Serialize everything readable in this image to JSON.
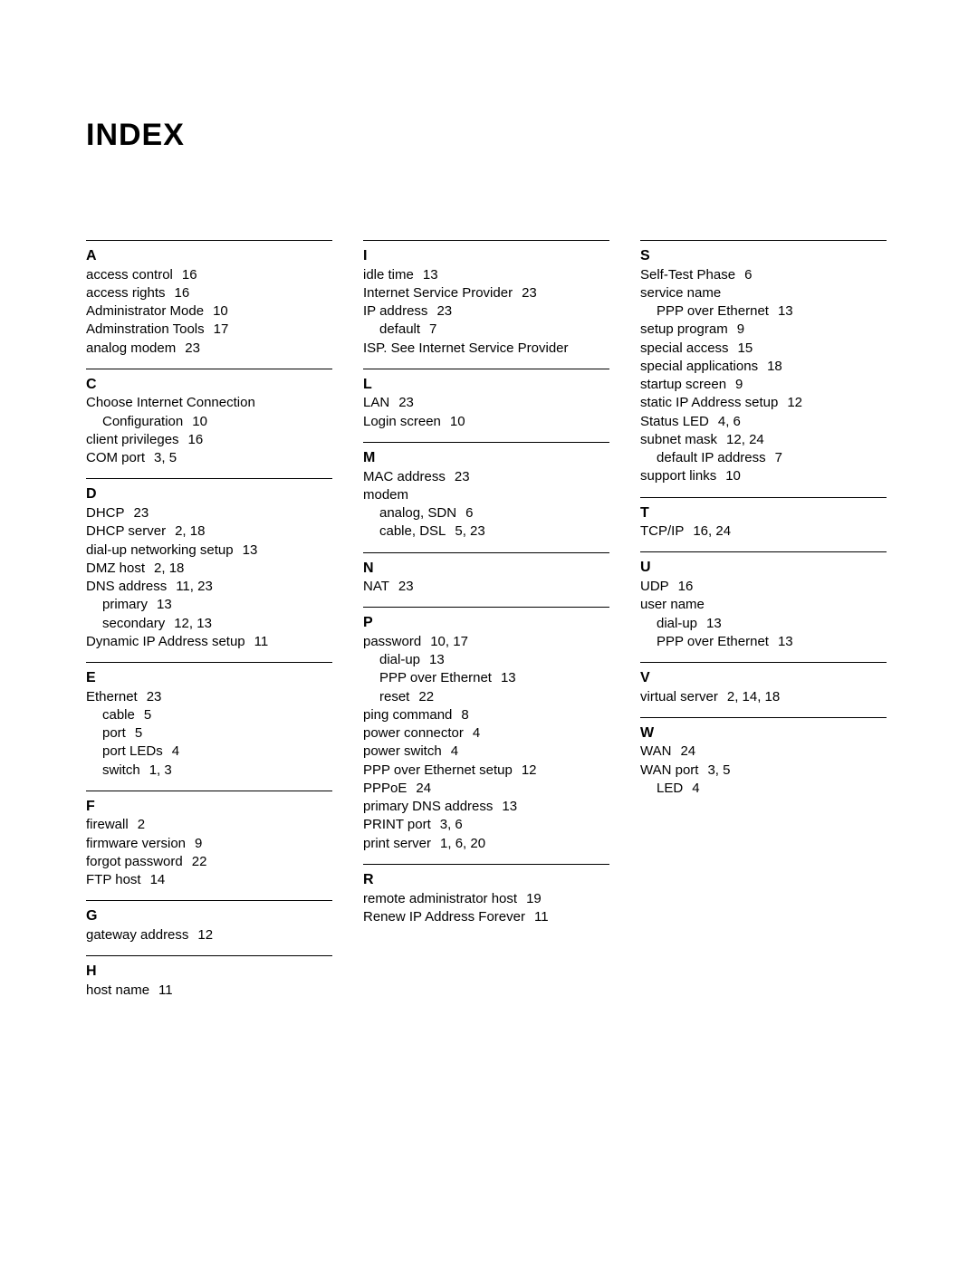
{
  "title": "INDEX",
  "columns": [
    [
      {
        "letter": "A",
        "entries": [
          {
            "term": "access control",
            "pages": "16"
          },
          {
            "term": "access rights",
            "pages": "16"
          },
          {
            "term": "Administrator Mode",
            "pages": "10"
          },
          {
            "term": "Adminstration Tools",
            "pages": "17"
          },
          {
            "term": "analog modem",
            "pages": "23"
          }
        ]
      },
      {
        "letter": "C",
        "entries": [
          {
            "term": "Choose Internet Connection",
            "pages": ""
          },
          {
            "term": "Configuration",
            "pages": "10",
            "indent": 1
          },
          {
            "term": "client privileges",
            "pages": "16"
          },
          {
            "term": "COM port",
            "pages": "3, 5"
          }
        ]
      },
      {
        "letter": "D",
        "entries": [
          {
            "term": "DHCP",
            "pages": "23"
          },
          {
            "term": "DHCP server",
            "pages": "2, 18"
          },
          {
            "term": "dial-up networking setup",
            "pages": "13"
          },
          {
            "term": "DMZ host",
            "pages": "2, 18"
          },
          {
            "term": "DNS address",
            "pages": "11, 23"
          },
          {
            "term": "primary",
            "pages": "13",
            "indent": 1
          },
          {
            "term": "secondary",
            "pages": "12, 13",
            "indent": 1
          },
          {
            "term": "Dynamic IP Address setup",
            "pages": "11"
          }
        ]
      },
      {
        "letter": "E",
        "entries": [
          {
            "term": "Ethernet",
            "pages": "23"
          },
          {
            "term": "cable",
            "pages": "5",
            "indent": 1
          },
          {
            "term": "port",
            "pages": "5",
            "indent": 1
          },
          {
            "term": "port LEDs",
            "pages": "4",
            "indent": 1
          },
          {
            "term": "switch",
            "pages": "1, 3",
            "indent": 1
          }
        ]
      },
      {
        "letter": "F",
        "entries": [
          {
            "term": "firewall",
            "pages": "2"
          },
          {
            "term": "firmware version",
            "pages": "9"
          },
          {
            "term": "forgot password",
            "pages": "22"
          },
          {
            "term": "FTP host",
            "pages": "14"
          }
        ]
      },
      {
        "letter": "G",
        "entries": [
          {
            "term": "gateway address",
            "pages": "12"
          }
        ]
      },
      {
        "letter": "H",
        "entries": [
          {
            "term": "host name",
            "pages": "11"
          }
        ]
      }
    ],
    [
      {
        "letter": "I",
        "entries": [
          {
            "term": "idle time",
            "pages": "13"
          },
          {
            "term": "Internet Service Provider",
            "pages": "23"
          },
          {
            "term": "IP address",
            "pages": "23"
          },
          {
            "term": "default",
            "pages": "7",
            "indent": 1
          },
          {
            "term": "ISP. See Internet Service Provider",
            "pages": ""
          }
        ]
      },
      {
        "letter": "L",
        "entries": [
          {
            "term": "LAN",
            "pages": "23"
          },
          {
            "term": "Login screen",
            "pages": "10"
          }
        ]
      },
      {
        "letter": "M",
        "entries": [
          {
            "term": "MAC address",
            "pages": "23"
          },
          {
            "term": "modem",
            "pages": ""
          },
          {
            "term": "analog, SDN",
            "pages": "6",
            "indent": 1
          },
          {
            "term": "cable, DSL",
            "pages": "5, 23",
            "indent": 1
          }
        ]
      },
      {
        "letter": "N",
        "entries": [
          {
            "term": "NAT",
            "pages": "23"
          }
        ]
      },
      {
        "letter": "P",
        "entries": [
          {
            "term": "password",
            "pages": "10, 17"
          },
          {
            "term": "dial-up",
            "pages": "13",
            "indent": 1
          },
          {
            "term": "PPP over Ethernet",
            "pages": "13",
            "indent": 1
          },
          {
            "term": "reset",
            "pages": "22",
            "indent": 1
          },
          {
            "term": "ping command",
            "pages": "8"
          },
          {
            "term": "power connector",
            "pages": "4"
          },
          {
            "term": "power switch",
            "pages": "4"
          },
          {
            "term": "PPP over Ethernet setup",
            "pages": "12"
          },
          {
            "term": "PPPoE",
            "pages": "24"
          },
          {
            "term": "primary DNS address",
            "pages": "13"
          },
          {
            "term": "PRINT port",
            "pages": "3, 6"
          },
          {
            "term": "print server",
            "pages": "1, 6, 20"
          }
        ]
      },
      {
        "letter": "R",
        "entries": [
          {
            "term": "remote administrator host",
            "pages": "19"
          },
          {
            "term": "Renew IP Address Forever",
            "pages": "11"
          }
        ]
      }
    ],
    [
      {
        "letter": "S",
        "entries": [
          {
            "term": "Self-Test Phase",
            "pages": "6"
          },
          {
            "term": "service name",
            "pages": ""
          },
          {
            "term": "PPP over Ethernet",
            "pages": "13",
            "indent": 1
          },
          {
            "term": "setup program",
            "pages": "9"
          },
          {
            "term": "special access",
            "pages": "15"
          },
          {
            "term": "special applications",
            "pages": "18"
          },
          {
            "term": "startup screen",
            "pages": "9"
          },
          {
            "term": "static IP Address setup",
            "pages": "12"
          },
          {
            "term": "Status LED",
            "pages": "4, 6"
          },
          {
            "term": "subnet mask",
            "pages": "12, 24"
          },
          {
            "term": "default IP address",
            "pages": "7",
            "indent": 1
          },
          {
            "term": "support links",
            "pages": "10"
          }
        ]
      },
      {
        "letter": "T",
        "entries": [
          {
            "term": "TCP/IP",
            "pages": "16, 24"
          }
        ]
      },
      {
        "letter": "U",
        "entries": [
          {
            "term": "UDP",
            "pages": "16"
          },
          {
            "term": "user name",
            "pages": ""
          },
          {
            "term": "dial-up",
            "pages": "13",
            "indent": 1
          },
          {
            "term": "PPP over Ethernet",
            "pages": "13",
            "indent": 1
          }
        ]
      },
      {
        "letter": "V",
        "entries": [
          {
            "term": "virtual server",
            "pages": "2, 14, 18"
          }
        ]
      },
      {
        "letter": "W",
        "entries": [
          {
            "term": "WAN",
            "pages": "24"
          },
          {
            "term": "WAN port",
            "pages": "3, 5"
          },
          {
            "term": "LED",
            "pages": "4",
            "indent": 1
          }
        ]
      }
    ]
  ]
}
